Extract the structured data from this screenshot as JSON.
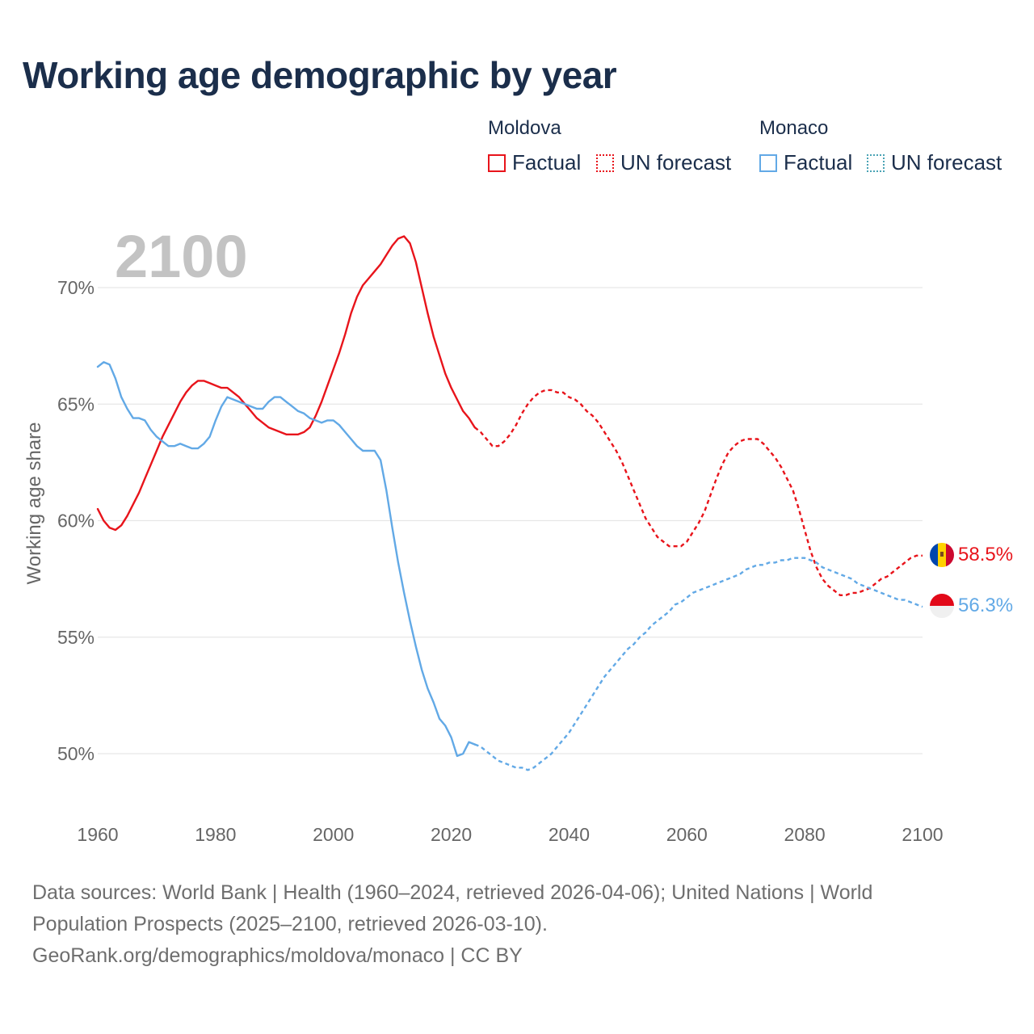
{
  "title": "Working age demographic by year",
  "legend": {
    "groups": [
      {
        "name": "Moldova",
        "color": "#e8141b",
        "factual_label": "Factual",
        "forecast_label": "UN forecast"
      },
      {
        "name": "Monaco",
        "color": "#62a9e6",
        "factual_label": "Factual",
        "forecast_label": "UN forecast"
      }
    ]
  },
  "year_watermark": "2100",
  "footer": {
    "line1": "Data sources: World Bank | Health (1960–2024, retrieved 2026-04-06); United Nations | World",
    "line2": "Population Prospects (2025–2100, retrieved 2026-03-10).",
    "line3": "GeoRank.org/demographics/moldova/monaco | CC BY"
  },
  "chart_data": {
    "type": "line",
    "title": "Working age demographic by year",
    "xlabel": "",
    "ylabel": "Working age share",
    "xlim": [
      1960,
      2100
    ],
    "ylim": [
      48,
      72
    ],
    "x_ticks": [
      1960,
      1980,
      2000,
      2020,
      2040,
      2060,
      2080,
      2100
    ],
    "y_ticks": [
      50,
      55,
      60,
      65,
      70
    ],
    "y_tick_suffix": "%",
    "series": [
      {
        "name": "Moldova",
        "color": "#e8141b",
        "end_label": "58.5%",
        "factual": {
          "x": [
            1960,
            1961,
            1962,
            1963,
            1964,
            1965,
            1966,
            1967,
            1968,
            1969,
            1970,
            1971,
            1972,
            1973,
            1974,
            1975,
            1976,
            1977,
            1978,
            1979,
            1980,
            1981,
            1982,
            1983,
            1984,
            1985,
            1986,
            1987,
            1988,
            1989,
            1990,
            1991,
            1992,
            1993,
            1994,
            1995,
            1996,
            1997,
            1998,
            1999,
            2000,
            2001,
            2002,
            2003,
            2004,
            2005,
            2006,
            2007,
            2008,
            2009,
            2010,
            2011,
            2012,
            2013,
            2014,
            2015,
            2016,
            2017,
            2018,
            2019,
            2020,
            2021,
            2022,
            2023,
            2024
          ],
          "y": [
            60.5,
            60.0,
            59.7,
            59.6,
            59.8,
            60.2,
            60.7,
            61.2,
            61.8,
            62.4,
            63.0,
            63.6,
            64.1,
            64.6,
            65.1,
            65.5,
            65.8,
            66.0,
            66.0,
            65.9,
            65.8,
            65.7,
            65.7,
            65.5,
            65.3,
            65.0,
            64.7,
            64.4,
            64.2,
            64.0,
            63.9,
            63.8,
            63.7,
            63.7,
            63.7,
            63.8,
            64.0,
            64.5,
            65.1,
            65.8,
            66.5,
            67.2,
            68.0,
            68.9,
            69.6,
            70.1,
            70.4,
            70.7,
            71.0,
            71.4,
            71.8,
            72.1,
            72.2,
            71.9,
            71.1,
            70.0,
            68.9,
            67.9,
            67.1,
            66.3,
            65.7,
            65.2,
            64.7,
            64.4,
            64.0
          ]
        },
        "forecast": {
          "x": [
            2024,
            2025,
            2026,
            2027,
            2028,
            2029,
            2030,
            2031,
            2032,
            2033,
            2034,
            2035,
            2036,
            2037,
            2038,
            2039,
            2040,
            2041,
            2042,
            2043,
            2044,
            2045,
            2046,
            2047,
            2048,
            2049,
            2050,
            2051,
            2052,
            2053,
            2054,
            2055,
            2056,
            2057,
            2058,
            2059,
            2060,
            2061,
            2062,
            2063,
            2064,
            2065,
            2066,
            2067,
            2068,
            2069,
            2070,
            2071,
            2072,
            2073,
            2074,
            2075,
            2076,
            2077,
            2078,
            2079,
            2080,
            2081,
            2082,
            2083,
            2084,
            2085,
            2086,
            2087,
            2088,
            2089,
            2090,
            2091,
            2092,
            2093,
            2094,
            2095,
            2096,
            2097,
            2098,
            2099,
            2100
          ],
          "y": [
            64.0,
            63.8,
            63.5,
            63.2,
            63.2,
            63.4,
            63.7,
            64.1,
            64.6,
            65.0,
            65.3,
            65.5,
            65.6,
            65.6,
            65.5,
            65.5,
            65.3,
            65.2,
            65.0,
            64.7,
            64.5,
            64.2,
            63.8,
            63.4,
            63.0,
            62.5,
            61.9,
            61.3,
            60.7,
            60.1,
            59.7,
            59.3,
            59.1,
            58.9,
            58.9,
            58.9,
            59.1,
            59.5,
            59.9,
            60.4,
            61.1,
            61.8,
            62.4,
            62.9,
            63.2,
            63.4,
            63.5,
            63.5,
            63.5,
            63.3,
            63.0,
            62.7,
            62.3,
            61.8,
            61.3,
            60.5,
            59.6,
            58.7,
            58.0,
            57.5,
            57.2,
            57.0,
            56.8,
            56.8,
            56.9,
            56.9,
            57.0,
            57.1,
            57.3,
            57.5,
            57.6,
            57.8,
            58.0,
            58.2,
            58.4,
            58.5,
            58.5
          ]
        }
      },
      {
        "name": "Monaco",
        "color": "#62a9e6",
        "end_label": "56.3%",
        "factual": {
          "x": [
            1960,
            1961,
            1962,
            1963,
            1964,
            1965,
            1966,
            1967,
            1968,
            1969,
            1970,
            1971,
            1972,
            1973,
            1974,
            1975,
            1976,
            1977,
            1978,
            1979,
            1980,
            1981,
            1982,
            1983,
            1984,
            1985,
            1986,
            1987,
            1988,
            1989,
            1990,
            1991,
            1992,
            1993,
            1994,
            1995,
            1996,
            1997,
            1998,
            1999,
            2000,
            2001,
            2002,
            2003,
            2004,
            2005,
            2006,
            2007,
            2008,
            2009,
            2010,
            2011,
            2012,
            2013,
            2014,
            2015,
            2016,
            2017,
            2018,
            2019,
            2020,
            2021,
            2022,
            2023,
            2024
          ],
          "y": [
            66.6,
            66.8,
            66.7,
            66.1,
            65.3,
            64.8,
            64.4,
            64.4,
            64.3,
            63.9,
            63.6,
            63.4,
            63.2,
            63.2,
            63.3,
            63.2,
            63.1,
            63.1,
            63.3,
            63.6,
            64.3,
            64.9,
            65.3,
            65.2,
            65.1,
            65.0,
            64.9,
            64.8,
            64.8,
            65.1,
            65.3,
            65.3,
            65.1,
            64.9,
            64.7,
            64.6,
            64.4,
            64.3,
            64.2,
            64.3,
            64.3,
            64.1,
            63.8,
            63.5,
            63.2,
            63.0,
            63.0,
            63.0,
            62.6,
            61.3,
            59.7,
            58.2,
            56.9,
            55.7,
            54.6,
            53.6,
            52.8,
            52.2,
            51.5,
            51.2,
            50.7,
            49.9,
            50.0,
            50.5,
            50.4
          ]
        },
        "forecast": {
          "x": [
            2024,
            2025,
            2026,
            2027,
            2028,
            2029,
            2030,
            2031,
            2032,
            2033,
            2034,
            2035,
            2036,
            2037,
            2038,
            2039,
            2040,
            2041,
            2042,
            2043,
            2044,
            2045,
            2046,
            2047,
            2048,
            2049,
            2050,
            2051,
            2052,
            2053,
            2054,
            2055,
            2056,
            2057,
            2058,
            2059,
            2060,
            2061,
            2062,
            2063,
            2064,
            2065,
            2066,
            2067,
            2068,
            2069,
            2070,
            2071,
            2072,
            2073,
            2074,
            2075,
            2076,
            2077,
            2078,
            2079,
            2080,
            2081,
            2082,
            2083,
            2084,
            2085,
            2086,
            2087,
            2088,
            2089,
            2090,
            2091,
            2092,
            2093,
            2094,
            2095,
            2096,
            2097,
            2098,
            2099,
            2100
          ],
          "y": [
            50.4,
            50.3,
            50.1,
            49.9,
            49.7,
            49.6,
            49.5,
            49.4,
            49.4,
            49.3,
            49.4,
            49.6,
            49.8,
            50.0,
            50.3,
            50.6,
            50.9,
            51.3,
            51.7,
            52.1,
            52.5,
            52.9,
            53.3,
            53.6,
            53.9,
            54.2,
            54.5,
            54.7,
            55.0,
            55.2,
            55.5,
            55.7,
            55.9,
            56.1,
            56.4,
            56.5,
            56.7,
            56.9,
            57.0,
            57.1,
            57.2,
            57.3,
            57.4,
            57.5,
            57.6,
            57.7,
            57.9,
            58.0,
            58.1,
            58.1,
            58.2,
            58.2,
            58.3,
            58.3,
            58.4,
            58.4,
            58.4,
            58.3,
            58.2,
            58.0,
            57.9,
            57.8,
            57.7,
            57.6,
            57.5,
            57.3,
            57.2,
            57.1,
            57.0,
            56.9,
            56.8,
            56.7,
            56.6,
            56.6,
            56.5,
            56.4,
            56.3
          ]
        }
      }
    ]
  }
}
